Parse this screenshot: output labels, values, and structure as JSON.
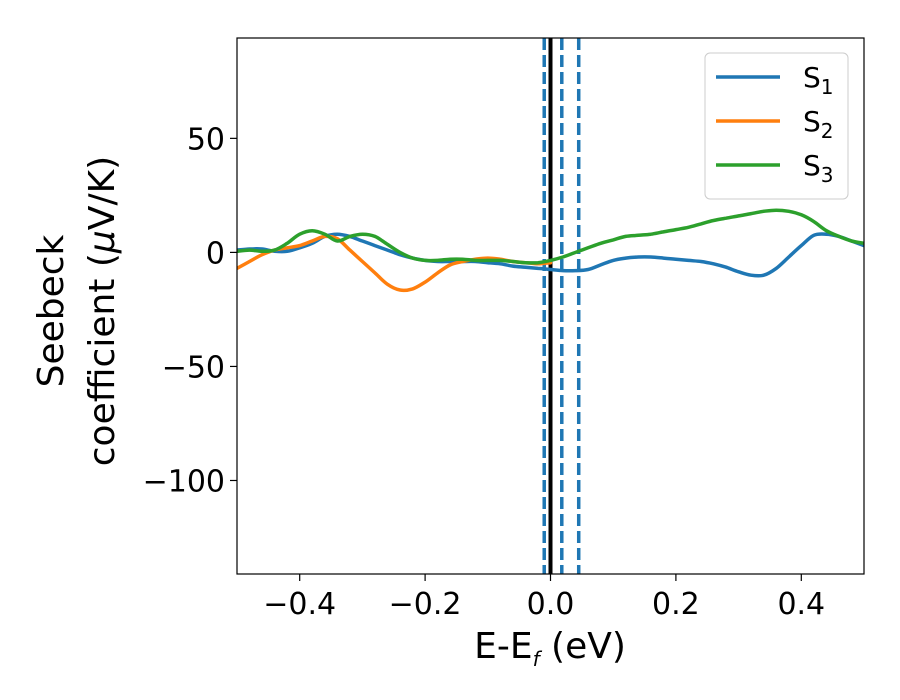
{
  "chart_data": {
    "type": "line",
    "xlabel": {
      "main": "E-E",
      "sub": "f",
      "unit": " (eV)"
    },
    "ylabel": {
      "line1": "Seebeck",
      "line2_main": "coefficient  (",
      "line2_mu": "μ",
      "line2_unit": "V/K)"
    },
    "xlim": [
      -0.5,
      0.5
    ],
    "ylim": [
      -141,
      94
    ],
    "x_ticks": [
      -0.4,
      -0.2,
      0.0,
      0.2,
      0.4
    ],
    "x_tick_labels": [
      "−0.4",
      "−0.2",
      "0.0",
      "0.2",
      "0.4"
    ],
    "y_ticks": [
      -100,
      -50,
      0,
      50
    ],
    "y_tick_labels": [
      "−100",
      "−50",
      "0",
      "50"
    ],
    "grid": false,
    "legend_position": "top-right",
    "series": [
      {
        "name": "S",
        "sub": "1",
        "color": "#1f77b4",
        "x": [
          -0.5,
          -0.48,
          -0.46,
          -0.44,
          -0.42,
          -0.4,
          -0.38,
          -0.36,
          -0.34,
          -0.32,
          -0.3,
          -0.28,
          -0.26,
          -0.24,
          -0.22,
          -0.2,
          -0.18,
          -0.16,
          -0.14,
          -0.12,
          -0.1,
          -0.08,
          -0.06,
          -0.04,
          -0.02,
          0.0,
          0.02,
          0.04,
          0.06,
          0.08,
          0.1,
          0.12,
          0.14,
          0.16,
          0.18,
          0.2,
          0.22,
          0.24,
          0.26,
          0.28,
          0.3,
          0.32,
          0.34,
          0.36,
          0.38,
          0.4,
          0.42,
          0.44,
          0.46,
          0.48,
          0.5
        ],
        "y": [
          1,
          1.5,
          1.5,
          0.5,
          0.5,
          2,
          4,
          7,
          8,
          7,
          5,
          3,
          1,
          -1,
          -2.5,
          -3.5,
          -4,
          -4,
          -4,
          -4,
          -4.5,
          -5,
          -6,
          -6.5,
          -7,
          -7.5,
          -8,
          -8,
          -7.5,
          -5.5,
          -3.5,
          -2.5,
          -2,
          -2,
          -2.5,
          -3,
          -3.5,
          -4,
          -5,
          -6.5,
          -8.5,
          -10,
          -10,
          -7,
          -2,
          3,
          7.5,
          8,
          7,
          5,
          3
        ]
      },
      {
        "name": "S",
        "sub": "2",
        "color": "#ff7f0e",
        "x": [
          -0.5,
          -0.48,
          -0.46,
          -0.44,
          -0.42,
          -0.4,
          -0.38,
          -0.36,
          -0.34,
          -0.32,
          -0.3,
          -0.28,
          -0.26,
          -0.24,
          -0.22,
          -0.2,
          -0.18,
          -0.16,
          -0.14,
          -0.12,
          -0.1,
          -0.08,
          -0.06,
          -0.04,
          -0.02,
          0.0
        ],
        "y": [
          -7,
          -4,
          -1,
          1,
          2,
          3,
          5,
          7,
          6,
          1,
          -4,
          -9,
          -14,
          -16.5,
          -16,
          -13,
          -9,
          -5.5,
          -4,
          -3,
          -2.5,
          -3,
          -4,
          -4.5,
          -5,
          -4.5
        ]
      },
      {
        "name": "S",
        "sub": "3",
        "color": "#2ca02c",
        "x": [
          -0.5,
          -0.48,
          -0.46,
          -0.44,
          -0.42,
          -0.4,
          -0.38,
          -0.36,
          -0.34,
          -0.32,
          -0.3,
          -0.28,
          -0.26,
          -0.24,
          -0.22,
          -0.2,
          -0.18,
          -0.16,
          -0.14,
          -0.12,
          -0.1,
          -0.08,
          -0.06,
          -0.04,
          -0.02,
          0.0,
          0.02,
          0.04,
          0.06,
          0.08,
          0.1,
          0.12,
          0.14,
          0.16,
          0.18,
          0.2,
          0.22,
          0.24,
          0.26,
          0.28,
          0.3,
          0.32,
          0.34,
          0.36,
          0.38,
          0.4,
          0.42,
          0.44,
          0.46,
          0.48,
          0.5
        ],
        "y": [
          0.5,
          1,
          0.5,
          1,
          4,
          8,
          9.5,
          8,
          5,
          7,
          8,
          7,
          3.5,
          0,
          -2.5,
          -3.5,
          -3.5,
          -3,
          -3,
          -3.5,
          -3.5,
          -3.5,
          -4,
          -4.5,
          -4.5,
          -3.5,
          -2,
          0,
          2,
          4,
          5.5,
          7,
          7.5,
          8,
          9,
          10,
          11,
          12.5,
          14,
          15,
          16,
          17,
          18,
          18.5,
          18,
          16.5,
          13.5,
          9.5,
          7,
          5,
          4
        ]
      }
    ],
    "vlines": [
      {
        "x": -0.01,
        "color": "#1f77b4",
        "style": "dashed"
      },
      {
        "x": 0.0,
        "color": "#000000",
        "style": "solid"
      },
      {
        "x": 0.018,
        "color": "#1f77b4",
        "style": "dashed"
      },
      {
        "x": 0.045,
        "color": "#1f77b4",
        "style": "dashed"
      }
    ]
  }
}
